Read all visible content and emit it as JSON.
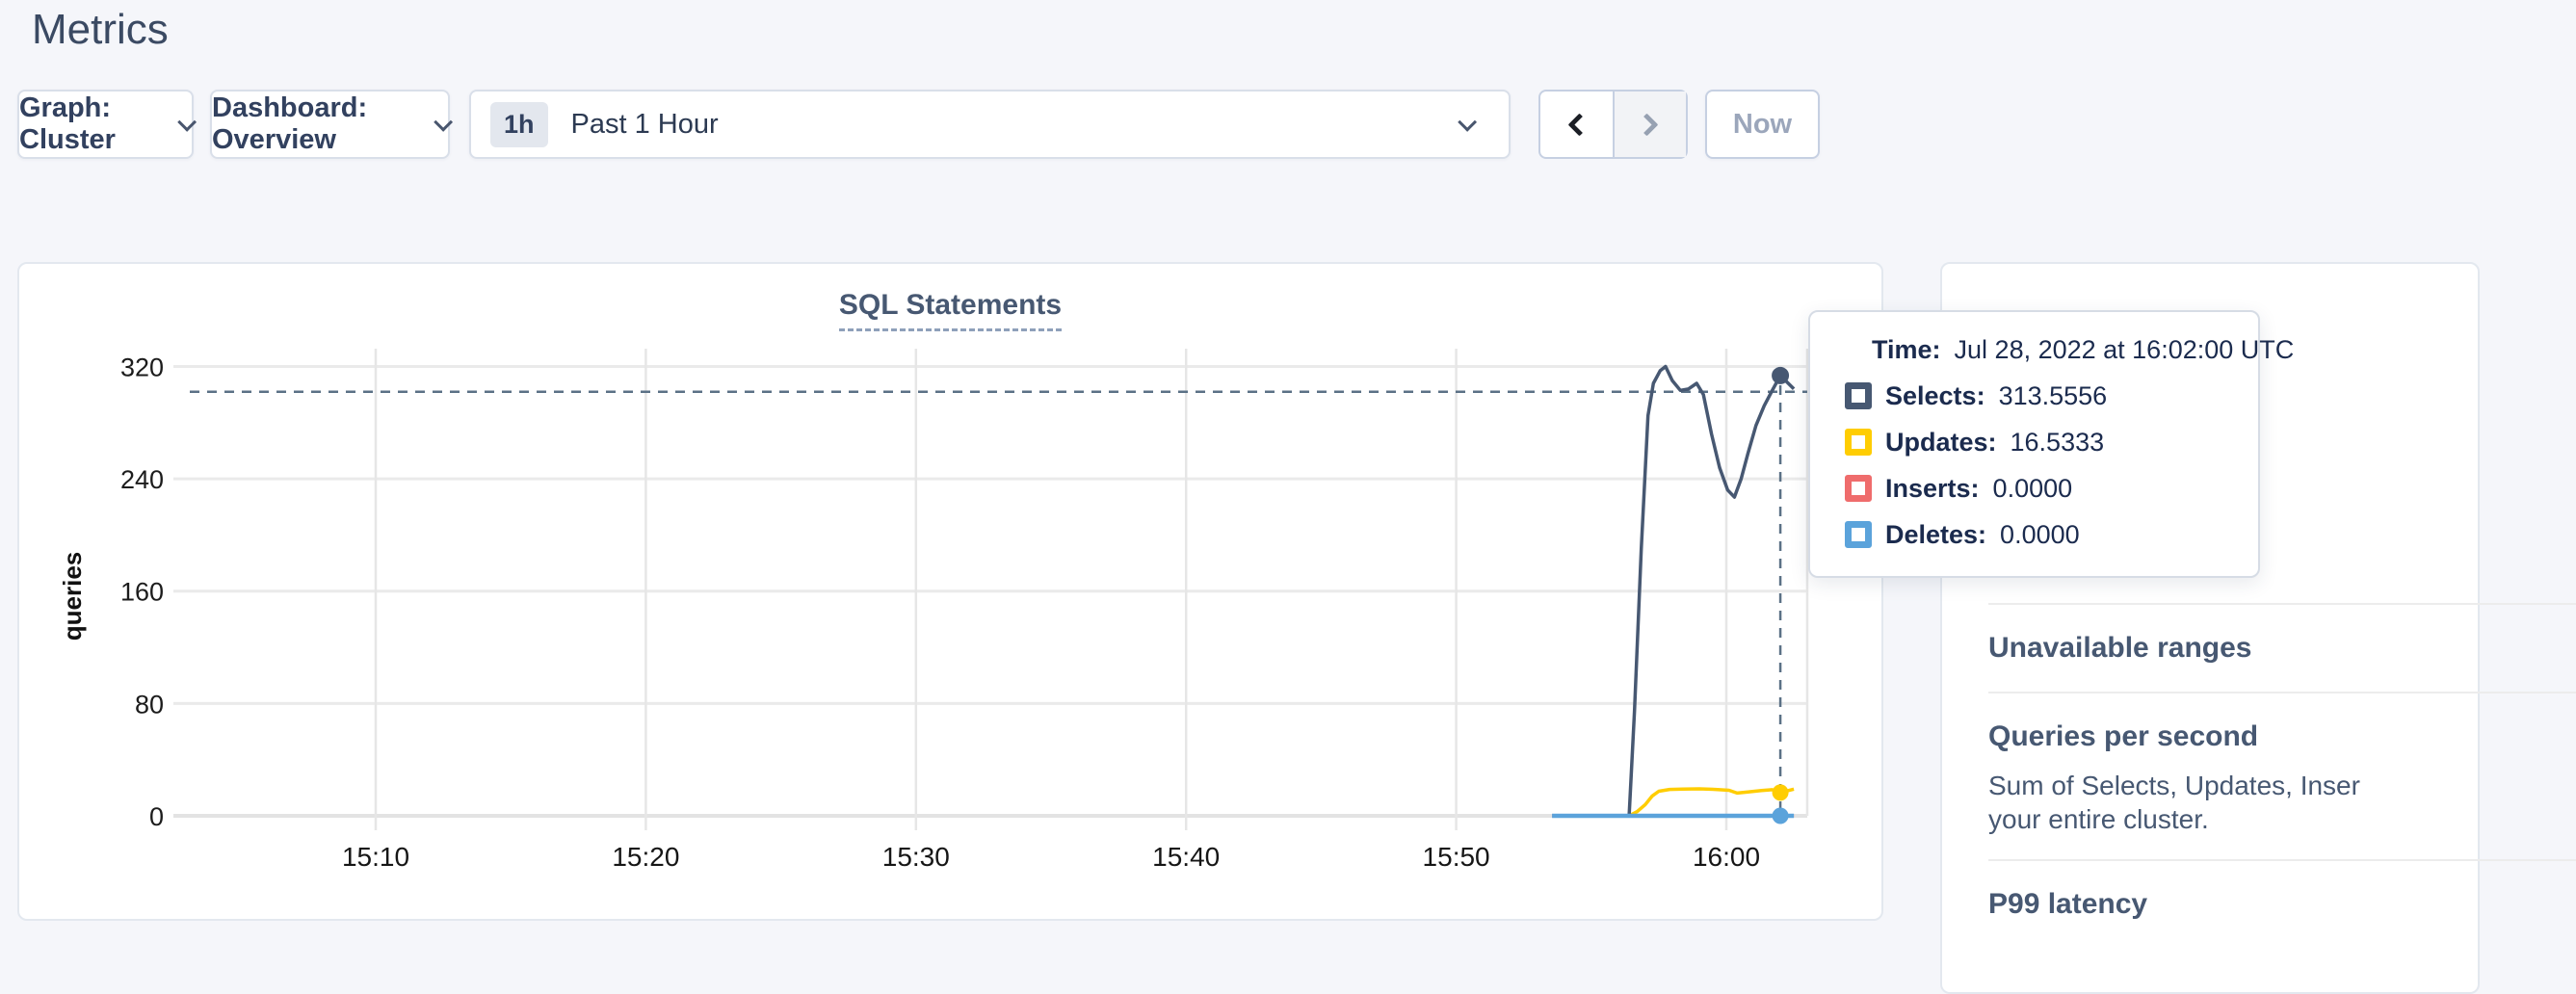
{
  "page": {
    "title": "Metrics"
  },
  "toolbar": {
    "graph_label": "Graph: Cluster",
    "dashboard_label": "Dashboard: Overview",
    "time_badge": "1h",
    "time_label": "Past 1 Hour",
    "now_label": "Now"
  },
  "chart_data": {
    "type": "line",
    "title": "SQL Statements",
    "ylabel": "queries",
    "yticks": [
      0,
      80,
      160,
      240,
      320
    ],
    "ylim": [
      0,
      333
    ],
    "grid": true,
    "legend_position": "tooltip-only",
    "xticks": [
      {
        "label": "15:10",
        "t": 10
      },
      {
        "label": "15:20",
        "t": 20
      },
      {
        "label": "15:30",
        "t": 30
      },
      {
        "label": "15:40",
        "t": 40
      },
      {
        "label": "15:50",
        "t": 50
      },
      {
        "label": "16:00",
        "t": 60
      }
    ],
    "x_axis_note": "t = minutes after 15:00, Jul 28 2022 UTC",
    "series": [
      {
        "name": "Inserts",
        "color": "#ef6c6c",
        "width": 3,
        "points": [
          [
            53.55,
            0
          ],
          [
            62.5,
            0
          ]
        ]
      },
      {
        "name": "Updates",
        "color": "#ffcd02",
        "width": 3.5,
        "points": [
          [
            56.4,
            0
          ],
          [
            56.7,
            3
          ],
          [
            57.0,
            8
          ],
          [
            57.25,
            14
          ],
          [
            57.5,
            17.5
          ],
          [
            57.9,
            18.8
          ],
          [
            58.4,
            19
          ],
          [
            59.0,
            19.2
          ],
          [
            59.6,
            18.8
          ],
          [
            60.1,
            18.2
          ],
          [
            60.4,
            16.2
          ],
          [
            60.8,
            17
          ],
          [
            61.3,
            18
          ],
          [
            61.7,
            18.6
          ],
          [
            62.0,
            16.5333
          ],
          [
            62.5,
            19
          ]
        ]
      },
      {
        "name": "Selects",
        "color": "#475872",
        "width": 3.5,
        "points": [
          [
            56.4,
            0
          ],
          [
            56.6,
            75
          ],
          [
            56.85,
            190
          ],
          [
            57.1,
            285
          ],
          [
            57.3,
            308
          ],
          [
            57.55,
            317
          ],
          [
            57.75,
            320
          ],
          [
            58.0,
            310
          ],
          [
            58.3,
            303
          ],
          [
            58.6,
            304
          ],
          [
            58.9,
            308
          ],
          [
            59.15,
            300
          ],
          [
            59.45,
            272
          ],
          [
            59.75,
            248
          ],
          [
            60.05,
            232
          ],
          [
            60.3,
            227
          ],
          [
            60.55,
            240
          ],
          [
            60.8,
            258
          ],
          [
            61.1,
            278
          ],
          [
            61.4,
            292
          ],
          [
            61.7,
            303
          ],
          [
            62.0,
            313.5556
          ],
          [
            62.5,
            304
          ]
        ]
      },
      {
        "name": "Deletes",
        "color": "#5ba3db",
        "width": 4.5,
        "points": [
          [
            53.55,
            0
          ],
          [
            62.5,
            0
          ]
        ]
      }
    ],
    "hover": {
      "t": 62.0,
      "hline_value": 302,
      "dots": [
        {
          "series": "Selects",
          "value": 313.5556,
          "color": "#475872",
          "r": 9
        },
        {
          "series": "Updates",
          "value": 16.5333,
          "color": "#ffcd02",
          "r": 8.5
        },
        {
          "series": "Deletes",
          "value": 0,
          "color": "#5ba3db",
          "r": 8.5
        }
      ]
    }
  },
  "tooltip": {
    "time_label": "Time:",
    "time_value": "Jul 28, 2022 at 16:02:00 UTC",
    "rows": [
      {
        "label": "Selects:",
        "value": "313.5556",
        "color": "#475872"
      },
      {
        "label": "Updates:",
        "value": "16.5333",
        "color": "#ffcd02"
      },
      {
        "label": "Inserts:",
        "value": "0.0000",
        "color": "#ef6c6c"
      },
      {
        "label": "Deletes:",
        "value": "0.0000",
        "color": "#5ba3db"
      }
    ]
  },
  "sidebar": {
    "items": [
      {
        "title": "Unavailable ranges",
        "lines": []
      },
      {
        "title": "Queries per second",
        "lines": [
          "Sum of Selects, Updates, Inser",
          "your entire cluster."
        ]
      },
      {
        "title": "P99 latency",
        "lines": []
      }
    ]
  }
}
